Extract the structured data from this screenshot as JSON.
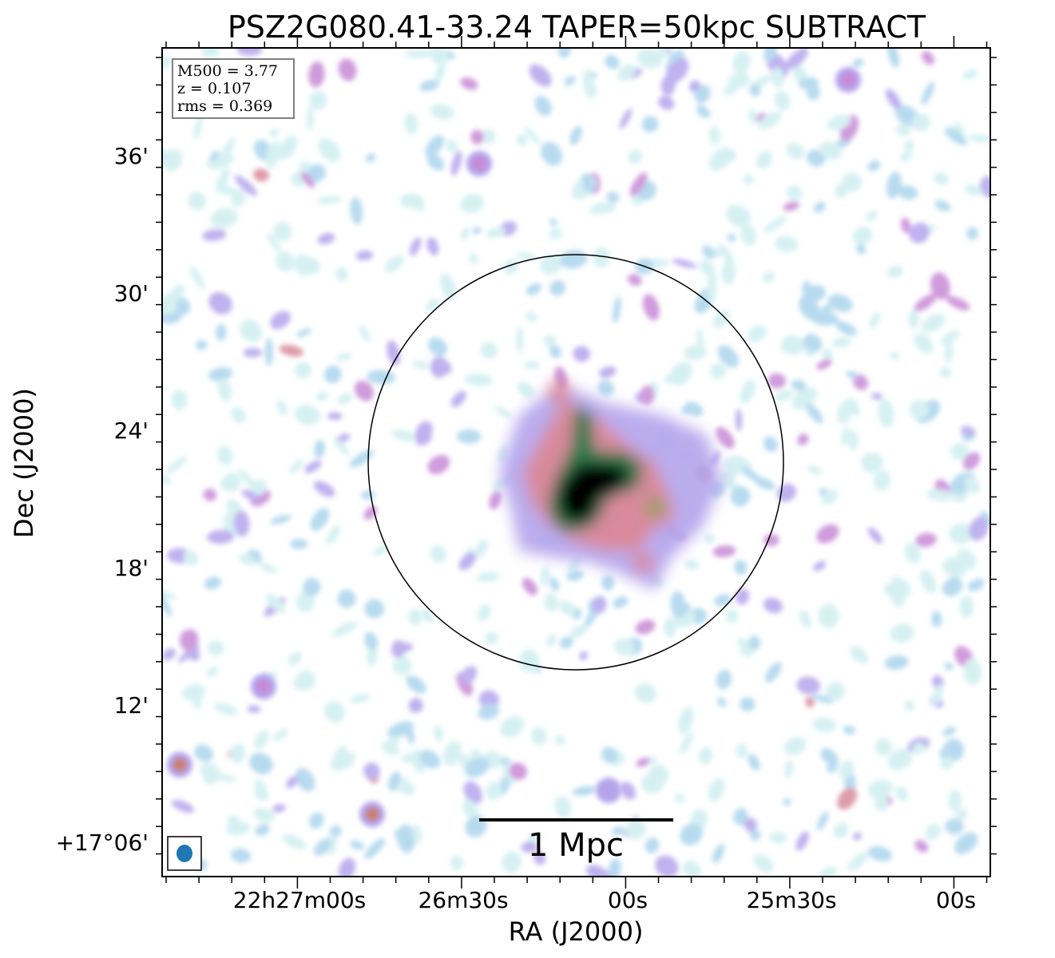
{
  "chart_data": {
    "type": "heatmap",
    "title": "PSZ2G080.41-33.24 TAPER=50kpc SUBTRACT",
    "xlabel": "RA (J2000)",
    "ylabel": "Dec (J2000)",
    "x_ticks": [
      "22h27m00s",
      "26m30s",
      "00s",
      "25m30s",
      "00s"
    ],
    "y_ticks": [
      "36'",
      "30'",
      "24'",
      "18'",
      "12'",
      "+17°06'"
    ],
    "info": {
      "line1": "M500 = 3.77",
      "line2": "z = 0.107",
      "line3": "rms = 0.369"
    },
    "scalebar_label": "1 Mpc",
    "colormap": [
      "#ffffff",
      "#cfeef0",
      "#aad4ec",
      "#b3a4ec",
      "#c889d6",
      "#d98a9c",
      "#c9806e",
      "#8fa05a",
      "#2f7a4c",
      "#23183a",
      "#000000"
    ],
    "beam_color": "#1f77b4",
    "grid": false
  }
}
